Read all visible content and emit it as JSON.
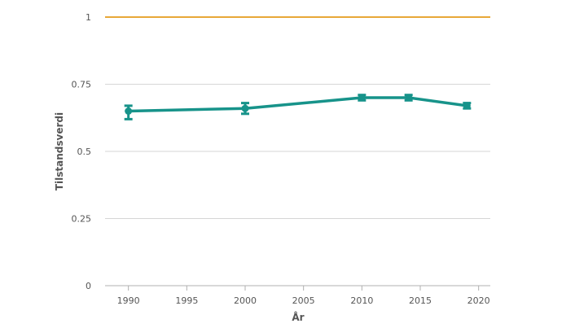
{
  "chart_data": {
    "type": "line",
    "title": "",
    "xlabel": "År",
    "ylabel": "Tilstandsverdi",
    "xlim": [
      1988,
      2021
    ],
    "ylim": [
      0,
      1
    ],
    "x_ticks": [
      1990,
      1995,
      2000,
      2005,
      2010,
      2015,
      2020
    ],
    "y_ticks": [
      {
        "value": 0,
        "label": "0"
      },
      {
        "value": 0.25,
        "label": "0.25"
      },
      {
        "value": 0.5,
        "label": "0.5"
      },
      {
        "value": 0.75,
        "label": "0.75"
      },
      {
        "value": 1,
        "label": "1"
      }
    ],
    "grid": true,
    "reference_line": {
      "value": 1,
      "color": "#e8a838"
    },
    "series": [
      {
        "color": "#17938a",
        "points": [
          {
            "x": 1990,
            "y": 0.65,
            "low": 0.62,
            "high": 0.67
          },
          {
            "x": 2000,
            "y": 0.66,
            "low": 0.64,
            "high": 0.68
          },
          {
            "x": 2010,
            "y": 0.7,
            "low": 0.69,
            "high": 0.71
          },
          {
            "x": 2014,
            "y": 0.7,
            "low": 0.69,
            "high": 0.71
          },
          {
            "x": 2019,
            "y": 0.67,
            "low": 0.66,
            "high": 0.68
          }
        ]
      }
    ]
  }
}
